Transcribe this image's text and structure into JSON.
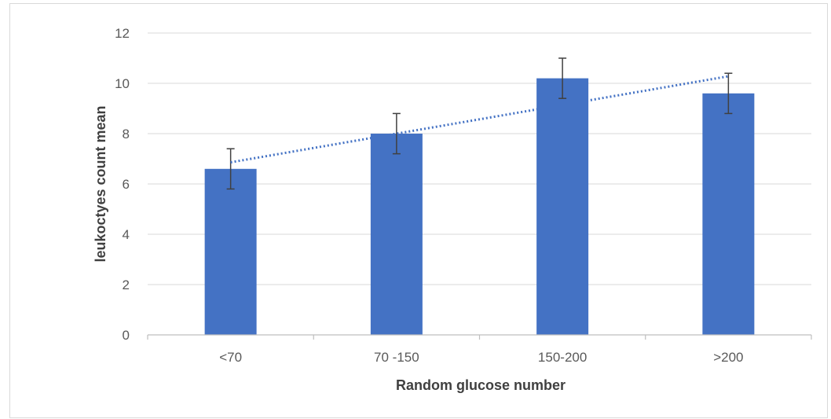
{
  "chart_data": {
    "type": "bar",
    "title": "",
    "xlabel": "Random glucose number",
    "ylabel": "leukoctyes count mean",
    "categories": [
      "<70",
      "70 -150",
      "150-200",
      ">200"
    ],
    "series": [
      {
        "values": [
          6.6,
          8.0,
          10.2,
          9.6
        ],
        "error_low": [
          5.8,
          7.2,
          9.4,
          8.8
        ],
        "error_high": [
          7.4,
          8.8,
          11.0,
          10.4
        ],
        "color": "#4472c4"
      }
    ],
    "trendline": {
      "type": "linear",
      "style": "dotted",
      "color": "#4472c4",
      "start_value": 6.86,
      "end_value": 10.28
    },
    "ylim": [
      0,
      12
    ],
    "yticks": [
      0,
      2,
      4,
      6,
      8,
      10,
      12
    ],
    "grid": true,
    "legend": "none"
  }
}
